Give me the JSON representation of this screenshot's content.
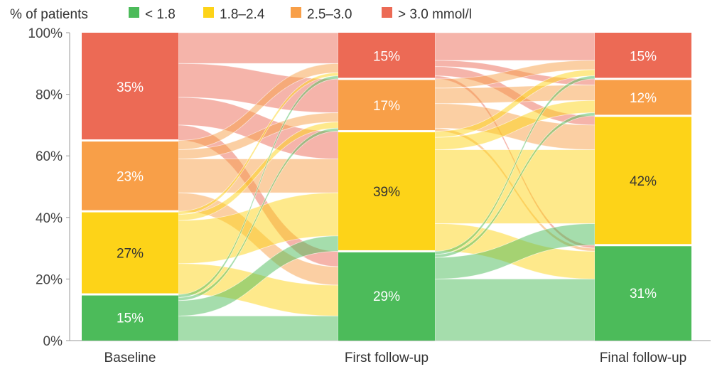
{
  "chart_data": {
    "type": "alluvial",
    "ylabel": "% of patients",
    "ylim": [
      0,
      100
    ],
    "yticks": [
      "0%",
      "20%",
      "40%",
      "60%",
      "80%",
      "100%"
    ],
    "categories": [
      "Baseline",
      "First follow-up",
      "Final follow-up"
    ],
    "legend": {
      "placement": "top",
      "entries": [
        {
          "key": "lt18",
          "label": "< 1.8",
          "color": "#4cbb5a"
        },
        {
          "key": "b1824",
          "label": "1.8–2.4",
          "color": "#fdd318"
        },
        {
          "key": "b2530",
          "label": "2.5–3.0",
          "color": "#f89f48"
        },
        {
          "key": "gt30",
          "label": "> 3.0 mmol/l",
          "color": "#ec6a55"
        }
      ]
    },
    "stages": [
      {
        "name": "Baseline",
        "segments": [
          {
            "key": "lt18",
            "value": 15,
            "label": "15%"
          },
          {
            "key": "b1824",
            "value": 27,
            "label": "27%"
          },
          {
            "key": "b2530",
            "value": 23,
            "label": "23%"
          },
          {
            "key": "gt30",
            "value": 35,
            "label": "35%"
          }
        ]
      },
      {
        "name": "First follow-up",
        "segments": [
          {
            "key": "lt18",
            "value": 29,
            "label": "29%"
          },
          {
            "key": "b1824",
            "value": 39,
            "label": "39%"
          },
          {
            "key": "b2530",
            "value": 17,
            "label": "17%"
          },
          {
            "key": "gt30",
            "value": 15,
            "label": "15%"
          }
        ]
      },
      {
        "name": "Final follow-up",
        "segments": [
          {
            "key": "lt18",
            "value": 31,
            "label": "31%"
          },
          {
            "key": "b1824",
            "value": 42,
            "label": "42%"
          },
          {
            "key": "b2530",
            "value": 12,
            "label": "12%"
          },
          {
            "key": "gt30",
            "value": 15,
            "label": "15%"
          }
        ]
      }
    ],
    "flows": [
      [
        {
          "from": "lt18",
          "to": "lt18",
          "value": 8
        },
        {
          "from": "lt18",
          "to": "b1824",
          "value": 5
        },
        {
          "from": "lt18",
          "to": "b2530",
          "value": 1
        },
        {
          "from": "lt18",
          "to": "gt30",
          "value": 1
        },
        {
          "from": "b1824",
          "to": "lt18",
          "value": 10
        },
        {
          "from": "b1824",
          "to": "b1824",
          "value": 14
        },
        {
          "from": "b1824",
          "to": "b2530",
          "value": 2
        },
        {
          "from": "b1824",
          "to": "gt30",
          "value": 1
        },
        {
          "from": "b2530",
          "to": "lt18",
          "value": 6
        },
        {
          "from": "b2530",
          "to": "b1824",
          "value": 11
        },
        {
          "from": "b2530",
          "to": "b2530",
          "value": 3
        },
        {
          "from": "b2530",
          "to": "gt30",
          "value": 3
        },
        {
          "from": "gt30",
          "to": "lt18",
          "value": 5
        },
        {
          "from": "gt30",
          "to": "b1824",
          "value": 9
        },
        {
          "from": "gt30",
          "to": "b2530",
          "value": 11
        },
        {
          "from": "gt30",
          "to": "gt30",
          "value": 10
        }
      ],
      [
        {
          "from": "lt18",
          "to": "lt18",
          "value": 20
        },
        {
          "from": "lt18",
          "to": "b1824",
          "value": 7
        },
        {
          "from": "lt18",
          "to": "b2530",
          "value": 1
        },
        {
          "from": "lt18",
          "to": "gt30",
          "value": 1
        },
        {
          "from": "b1824",
          "to": "lt18",
          "value": 9
        },
        {
          "from": "b1824",
          "to": "b1824",
          "value": 24
        },
        {
          "from": "b1824",
          "to": "b2530",
          "value": 4
        },
        {
          "from": "b1824",
          "to": "gt30",
          "value": 2
        },
        {
          "from": "b2530",
          "to": "lt18",
          "value": 1
        },
        {
          "from": "b2530",
          "to": "b1824",
          "value": 8
        },
        {
          "from": "b2530",
          "to": "b2530",
          "value": 5
        },
        {
          "from": "b2530",
          "to": "gt30",
          "value": 3
        },
        {
          "from": "gt30",
          "to": "lt18",
          "value": 1
        },
        {
          "from": "gt30",
          "to": "b1824",
          "value": 3
        },
        {
          "from": "gt30",
          "to": "b2530",
          "value": 2
        },
        {
          "from": "gt30",
          "to": "gt30",
          "value": 9
        }
      ]
    ]
  }
}
